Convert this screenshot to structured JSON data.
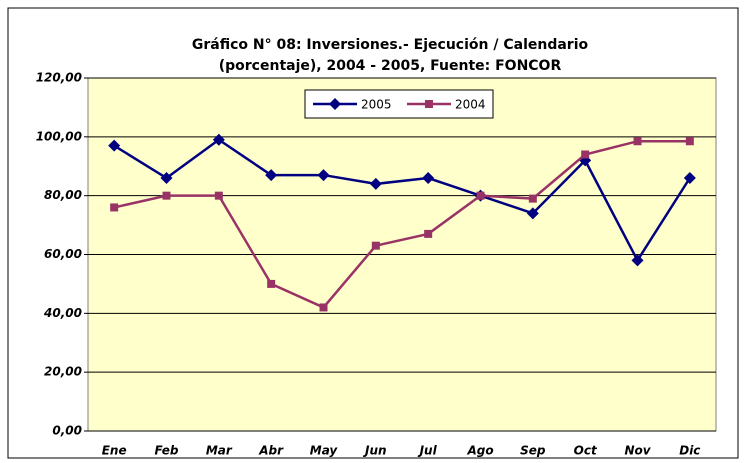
{
  "chart_data": {
    "type": "line",
    "title": [
      "Gráfico N° 08: Inversiones.- Ejecución / Calendario",
      "(porcentaje), 2004 - 2005, Fuente: FONCOR"
    ],
    "categories": [
      "Ene",
      "Feb",
      "Mar",
      "Abr",
      "May",
      "Jun",
      "Jul",
      "Ago",
      "Sep",
      "Oct",
      "Nov",
      "Dic"
    ],
    "series": [
      {
        "name": "2005",
        "color": "#000080",
        "marker": "diamond",
        "values": [
          97,
          86,
          99,
          87,
          87,
          84,
          86,
          80,
          74,
          92,
          58,
          86
        ]
      },
      {
        "name": "2004",
        "color": "#993366",
        "marker": "square",
        "values": [
          76,
          80,
          80,
          50,
          42,
          63,
          67,
          80,
          79,
          94,
          98.5,
          98.5
        ]
      }
    ],
    "ylim": [
      0,
      120
    ],
    "yticks": [
      {
        "value": 0,
        "label": "0,00"
      },
      {
        "value": 20,
        "label": "20,00"
      },
      {
        "value": 40,
        "label": "40,00"
      },
      {
        "value": 60,
        "label": "60,00"
      },
      {
        "value": 80,
        "label": "80,00"
      },
      {
        "value": 100,
        "label": "100,00"
      },
      {
        "value": 120,
        "label": "120,00"
      }
    ],
    "grid": true,
    "legend": "top"
  }
}
